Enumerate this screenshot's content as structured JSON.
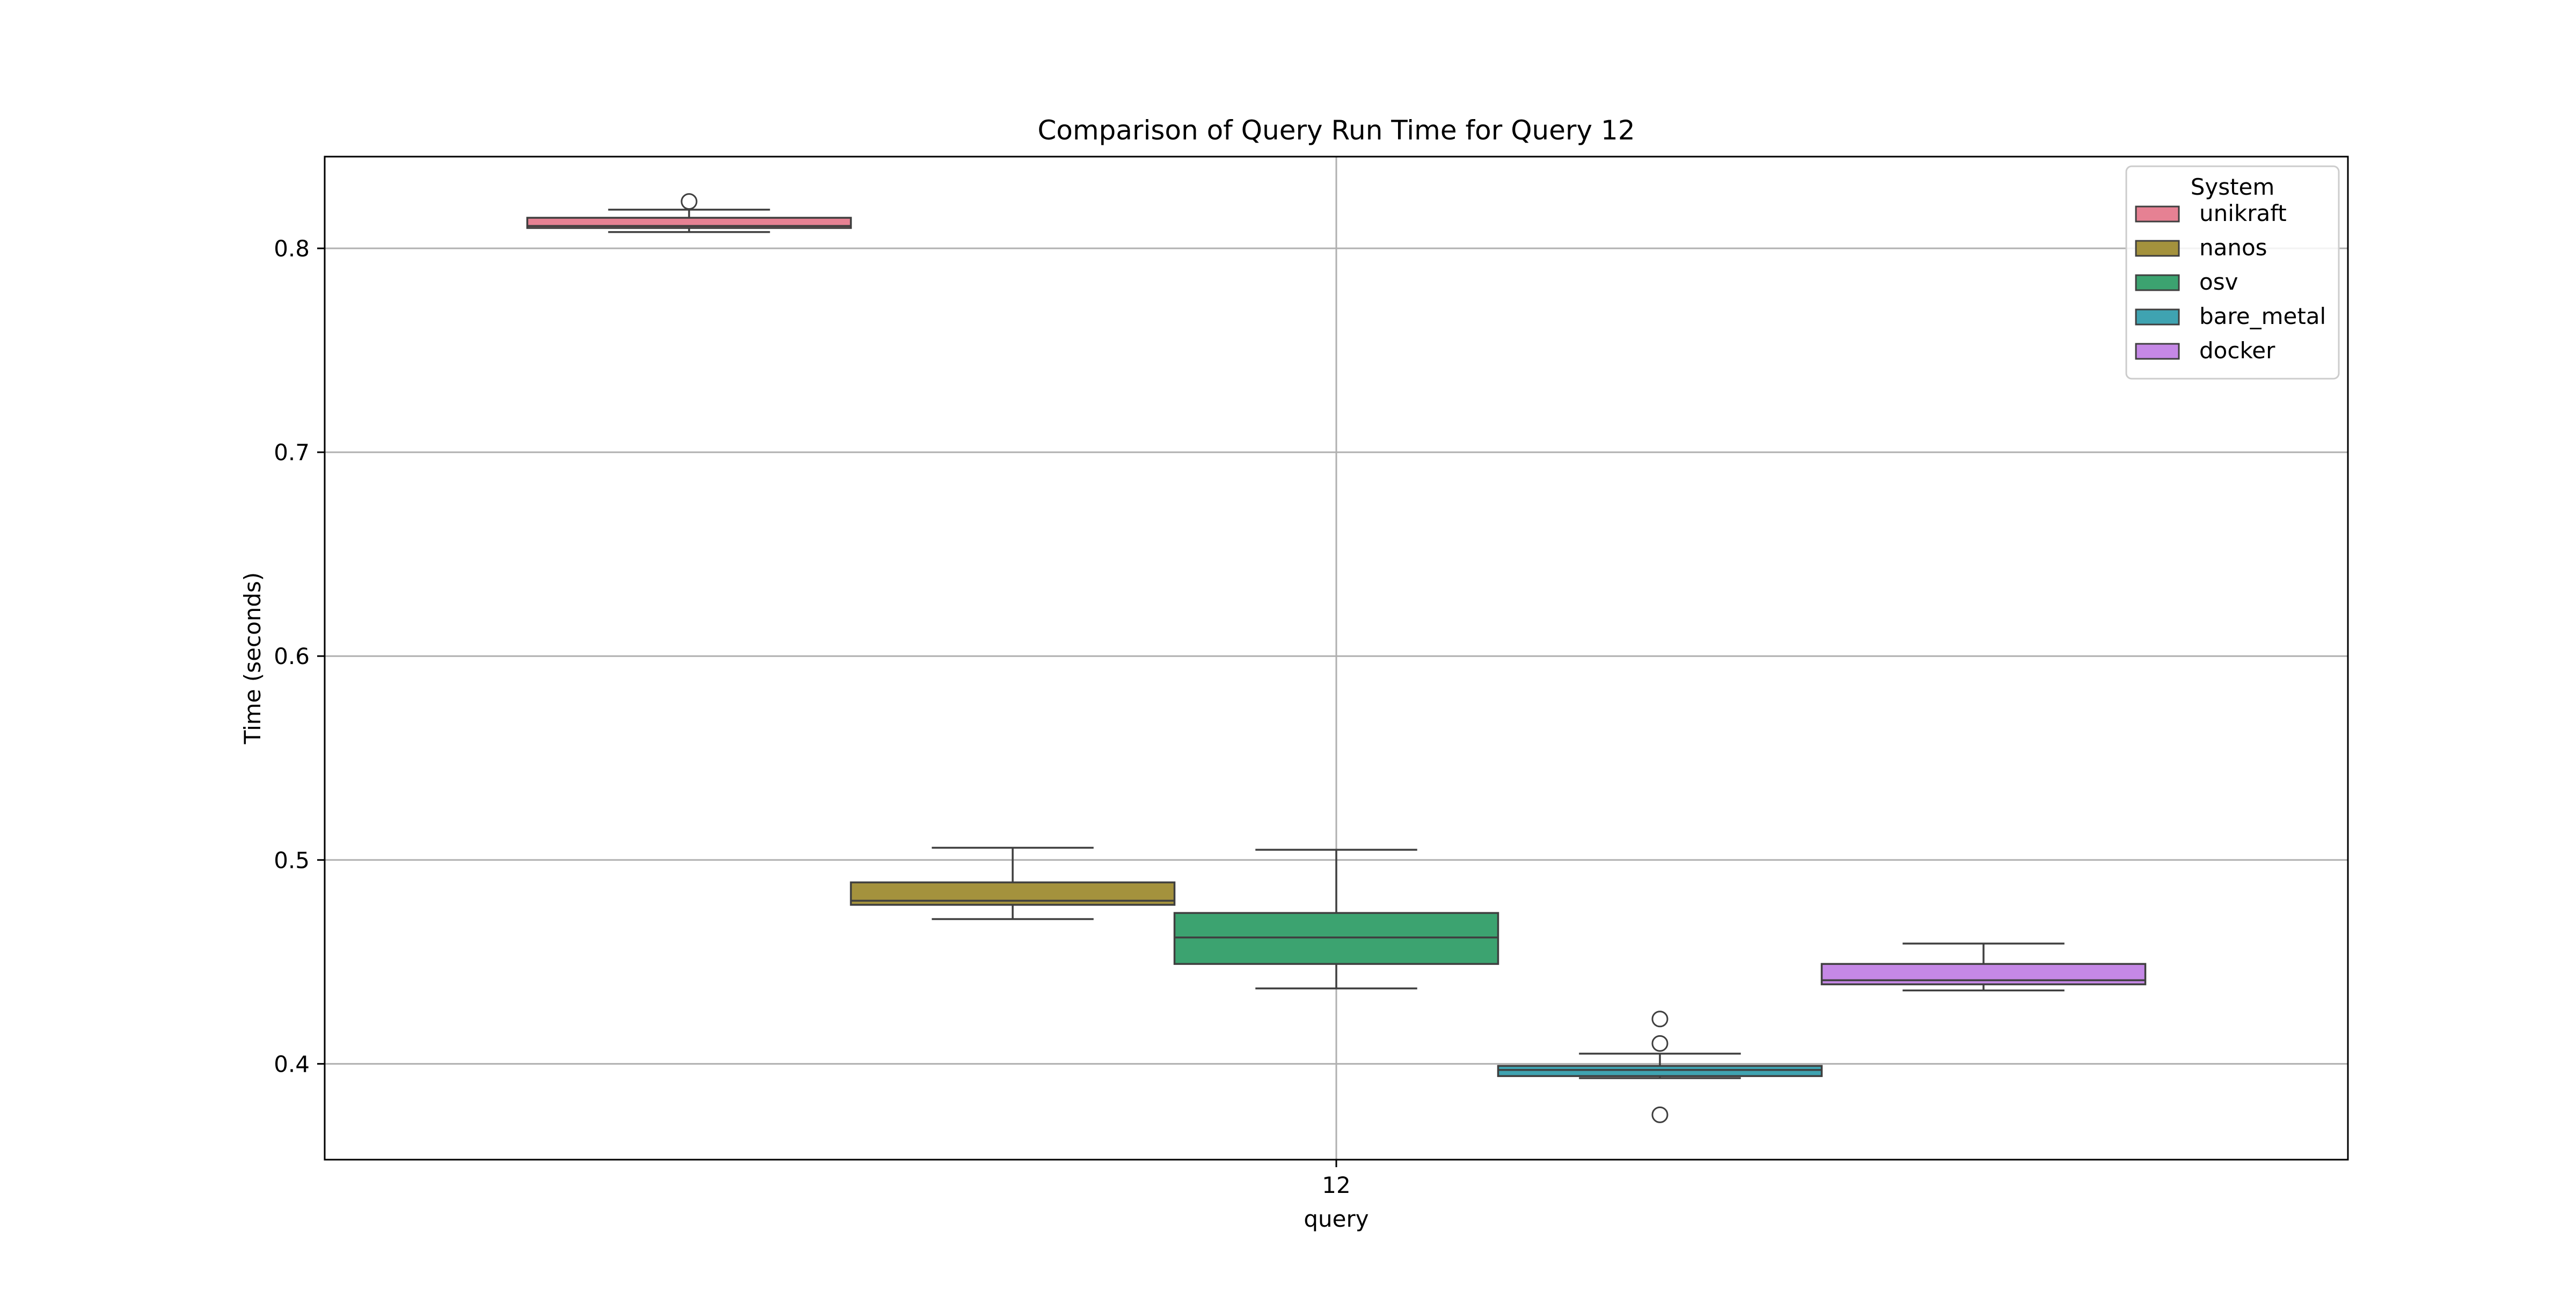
{
  "chart_data": {
    "type": "box",
    "title": "Comparison of Query Run Time for Query 12",
    "xlabel": "query",
    "ylabel": "Time (seconds)",
    "categories": [
      "12"
    ],
    "ylim": [
      0.353,
      0.845
    ],
    "yticks": [
      0.4,
      0.5,
      0.6,
      0.7,
      0.8
    ],
    "yticklabels": [
      "0.4",
      "0.5",
      "0.6",
      "0.7",
      "0.8"
    ],
    "grid": true,
    "legend": {
      "title": "System",
      "placement": "top-right"
    },
    "series": [
      {
        "name": "unikraft",
        "color": "#e68193",
        "whisker_low": 0.808,
        "q1": 0.81,
        "median": 0.811,
        "q3": 0.815,
        "whisker_high": 0.819,
        "outliers": [
          0.823
        ]
      },
      {
        "name": "nanos",
        "color": "#a4923d",
        "whisker_low": 0.471,
        "q1": 0.478,
        "median": 0.48,
        "q3": 0.489,
        "whisker_high": 0.506,
        "outliers": []
      },
      {
        "name": "osv",
        "color": "#3ca370",
        "whisker_low": 0.437,
        "q1": 0.449,
        "median": 0.462,
        "q3": 0.474,
        "whisker_high": 0.505,
        "outliers": []
      },
      {
        "name": "bare_metal",
        "color": "#3fa3b1",
        "whisker_low": 0.393,
        "q1": 0.394,
        "median": 0.397,
        "q3": 0.399,
        "whisker_high": 0.405,
        "outliers": [
          0.422,
          0.41,
          0.375
        ]
      },
      {
        "name": "docker",
        "color": "#c588e6",
        "whisker_low": 0.436,
        "q1": 0.439,
        "median": 0.441,
        "q3": 0.449,
        "whisker_high": 0.459,
        "outliers": []
      }
    ]
  }
}
